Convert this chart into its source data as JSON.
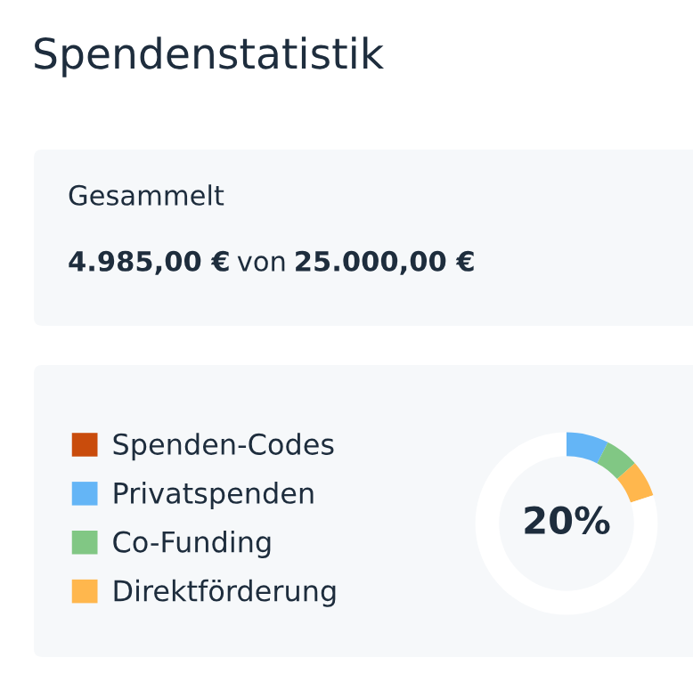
{
  "chart_data": [
    {
      "type": "other",
      "title": "Spendenstatistik",
      "annotations": [
        "Gesammelt",
        "4.985,00 €",
        "von",
        "25.000,00 €"
      ]
    },
    {
      "type": "donut",
      "categories": [
        "Spenden-Codes",
        "Privatspenden",
        "Co-Funding",
        "Direktförderung",
        null
      ],
      "values": [
        0,
        7.5,
        6,
        6.5,
        80
      ],
      "colors": [
        "#c94c0c",
        "#64b5f6",
        "#81c784",
        "#ffb74d",
        "#ffffff"
      ],
      "annotations": [
        "20%"
      ],
      "legend": "left"
    }
  ]
}
